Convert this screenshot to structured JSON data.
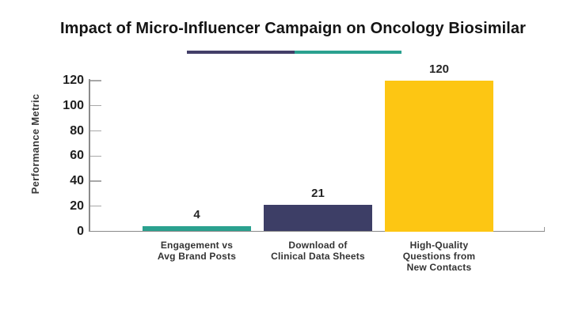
{
  "chart_data": {
    "type": "bar",
    "title": "Impact of Micro-Influencer Campaign on Oncology Biosimilar",
    "ylabel": "Performance Metric",
    "xlabel": "",
    "ylim": [
      0,
      120
    ],
    "yticks": [
      0,
      20,
      40,
      60,
      80,
      100,
      120
    ],
    "grid": false,
    "legend": "none",
    "categories": [
      "Engagement vs\nAvg Brand Posts",
      "Download of\nClinical Data Sheets",
      "High-Quality\nQuestions from\nNew Contacts"
    ],
    "values": [
      4,
      21,
      120
    ],
    "value_labels": [
      "4",
      "21",
      "120"
    ],
    "bar_colors": [
      "#2aa18f",
      "#3d3e66",
      "#fdc613"
    ]
  },
  "decor": {
    "divider_left_color": "#433e68",
    "divider_right_color": "#2aa18f"
  },
  "colors": {
    "background": "#ffffff",
    "axis": "#8a8a8a",
    "title_text": "#141414",
    "tick_text": "#1f1f1f",
    "category_text": "#333333"
  }
}
